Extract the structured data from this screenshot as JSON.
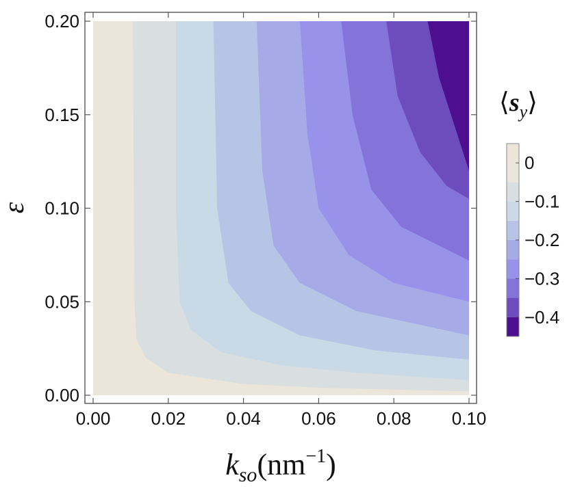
{
  "chart_data": {
    "type": "heatmap",
    "subtype": "contour",
    "x": {
      "label_base": "k",
      "label_sub": "so",
      "label_units": "(nm",
      "label_units_sup": "−1",
      "label_units_close": ")",
      "range": [
        0.0,
        0.1
      ],
      "ticks": [
        0.0,
        0.02,
        0.04,
        0.06,
        0.08,
        0.1
      ],
      "tick_labels": [
        "0.00",
        "0.02",
        "0.04",
        "0.06",
        "0.08",
        "0.10"
      ]
    },
    "y": {
      "label": "ε",
      "range": [
        0.0,
        0.2
      ],
      "ticks": [
        0.0,
        0.05,
        0.1,
        0.15,
        0.2
      ],
      "tick_labels": [
        "0.00",
        "0.05",
        "0.10",
        "0.15",
        "0.20"
      ]
    },
    "colorbar": {
      "title_open": "⟨",
      "title_symbol": "s",
      "title_sub": "y",
      "title_close": "⟩",
      "ticks": [
        0,
        -0.1,
        -0.2,
        -0.3,
        -0.4
      ],
      "tick_labels": [
        "0",
        "−0.1",
        "−0.2",
        "−0.3",
        "−0.4"
      ],
      "range": [
        -0.45,
        0.05
      ],
      "levels": [
        0.05,
        0,
        -0.05,
        -0.1,
        -0.15,
        -0.2,
        -0.25,
        -0.3,
        -0.35,
        -0.4,
        -0.45
      ]
    },
    "bands": [
      {
        "lower": 0.0,
        "upper": 0.05,
        "color": "#ece6da"
      },
      {
        "lower": -0.05,
        "upper": 0.0,
        "color": "#ebe6dc"
      },
      {
        "lower": -0.1,
        "upper": -0.05,
        "color": "#d9dfe1"
      },
      {
        "lower": -0.15,
        "upper": -0.1,
        "color": "#c9dae6"
      },
      {
        "lower": -0.2,
        "upper": -0.15,
        "color": "#b6c4e6"
      },
      {
        "lower": -0.25,
        "upper": -0.2,
        "color": "#a6abe8"
      },
      {
        "lower": -0.3,
        "upper": -0.25,
        "color": "#9892ea"
      },
      {
        "lower": -0.35,
        "upper": -0.3,
        "color": "#8473d8"
      },
      {
        "lower": -0.4,
        "upper": -0.35,
        "color": "#6d4cbe"
      },
      {
        "lower": -0.45,
        "upper": -0.4,
        "color": "#4d0f8e"
      }
    ],
    "boundaries": [
      {
        "level": -0.05,
        "points": [
          [
            0.0105,
            0.2
          ],
          [
            0.011,
            0.05
          ],
          [
            0.0115,
            0.03
          ],
          [
            0.014,
            0.02
          ],
          [
            0.02,
            0.012
          ],
          [
            0.04,
            0.006
          ],
          [
            0.06,
            0.004
          ],
          [
            0.1,
            0.002
          ]
        ]
      },
      {
        "level": -0.1,
        "points": [
          [
            0.022,
            0.2
          ],
          [
            0.022,
            0.1
          ],
          [
            0.023,
            0.05
          ],
          [
            0.026,
            0.035
          ],
          [
            0.034,
            0.023
          ],
          [
            0.05,
            0.016
          ],
          [
            0.07,
            0.012
          ],
          [
            0.1,
            0.008
          ]
        ]
      },
      {
        "level": -0.15,
        "points": [
          [
            0.032,
            0.2
          ],
          [
            0.033,
            0.1
          ],
          [
            0.036,
            0.06
          ],
          [
            0.042,
            0.045
          ],
          [
            0.055,
            0.032
          ],
          [
            0.075,
            0.024
          ],
          [
            0.1,
            0.019
          ]
        ]
      },
      {
        "level": -0.2,
        "points": [
          [
            0.0435,
            0.2
          ],
          [
            0.045,
            0.12
          ],
          [
            0.048,
            0.08
          ],
          [
            0.055,
            0.06
          ],
          [
            0.07,
            0.045
          ],
          [
            0.1,
            0.032
          ]
        ]
      },
      {
        "level": -0.25,
        "points": [
          [
            0.055,
            0.2
          ],
          [
            0.057,
            0.14
          ],
          [
            0.06,
            0.1
          ],
          [
            0.068,
            0.075
          ],
          [
            0.08,
            0.06
          ],
          [
            0.1,
            0.05
          ]
        ]
      },
      {
        "level": -0.3,
        "points": [
          [
            0.066,
            0.2
          ],
          [
            0.069,
            0.15
          ],
          [
            0.074,
            0.11
          ],
          [
            0.082,
            0.09
          ],
          [
            0.1,
            0.072
          ]
        ]
      },
      {
        "level": -0.35,
        "points": [
          [
            0.078,
            0.2
          ],
          [
            0.081,
            0.16
          ],
          [
            0.087,
            0.13
          ],
          [
            0.094,
            0.112
          ],
          [
            0.1,
            0.105
          ]
        ]
      },
      {
        "level": -0.4,
        "points": [
          [
            0.089,
            0.2
          ],
          [
            0.092,
            0.17
          ],
          [
            0.096,
            0.145
          ],
          [
            0.1,
            0.12
          ]
        ]
      }
    ],
    "grid": false,
    "legend": "colorbar-right"
  }
}
